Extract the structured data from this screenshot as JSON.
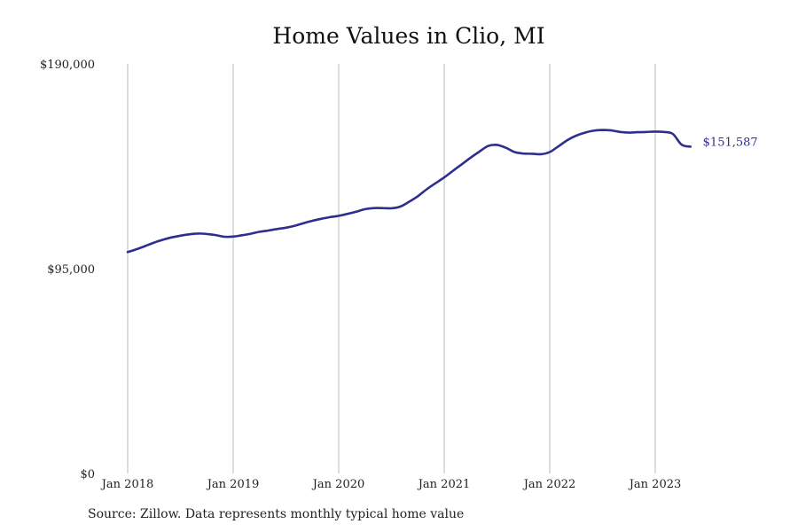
{
  "chart_data": {
    "type": "line",
    "title": "Home Values in Clio, MI",
    "xlabel": "",
    "ylabel": "",
    "ylim": [
      0,
      190000
    ],
    "y_ticks": [
      "$0",
      "$95,000",
      "$190,000"
    ],
    "y_tick_values": [
      0,
      95000,
      190000
    ],
    "x_tick_labels": [
      "Jan 2018",
      "Jan 2019",
      "Jan 2020",
      "Jan 2021",
      "Jan 2022",
      "Jan 2023"
    ],
    "x_tick_dates": [
      "2018-01",
      "2019-01",
      "2020-01",
      "2021-01",
      "2022-01",
      "2023-01"
    ],
    "grid": "vertical",
    "last_value_label": "$151,587",
    "line_color": "#2e2e8f",
    "grid_color": "#bbbbbb",
    "series": [
      {
        "x": [
          "2018-01",
          "2018-02",
          "2018-03",
          "2018-04",
          "2018-05",
          "2018-06",
          "2018-07",
          "2018-08",
          "2018-09",
          "2018-10",
          "2018-11",
          "2018-12",
          "2019-01",
          "2019-02",
          "2019-03",
          "2019-04",
          "2019-05",
          "2019-06",
          "2019-07",
          "2019-08",
          "2019-09",
          "2019-10",
          "2019-11",
          "2019-12",
          "2020-01",
          "2020-02",
          "2020-03",
          "2020-04",
          "2020-05",
          "2020-06",
          "2020-07",
          "2020-08",
          "2020-09",
          "2020-10",
          "2020-11",
          "2020-12",
          "2021-01",
          "2021-02",
          "2021-03",
          "2021-04",
          "2021-05",
          "2021-06",
          "2021-07",
          "2021-08",
          "2021-09",
          "2021-10",
          "2021-11",
          "2021-12",
          "2022-01",
          "2022-02",
          "2022-03",
          "2022-04",
          "2022-05",
          "2022-06",
          "2022-07",
          "2022-08",
          "2022-09",
          "2022-10",
          "2022-11",
          "2022-12",
          "2023-01",
          "2023-02",
          "2023-03",
          "2023-04",
          "2023-05"
        ],
        "values": [
          102700,
          104000,
          105500,
          107100,
          108400,
          109500,
          110300,
          110900,
          111300,
          111100,
          110600,
          109800,
          109900,
          110500,
          111200,
          112100,
          112700,
          113400,
          114000,
          114900,
          116100,
          117200,
          118100,
          118900,
          119500,
          120400,
          121400,
          122600,
          123100,
          123100,
          123000,
          123800,
          126000,
          128600,
          131800,
          134600,
          137300,
          140400,
          143400,
          146500,
          149300,
          151900,
          152400,
          151100,
          149100,
          148400,
          148300,
          148100,
          149100,
          151800,
          154600,
          156700,
          158100,
          159000,
          159300,
          159100,
          158400,
          158100,
          158300,
          158400,
          158600,
          158400,
          157500,
          152500,
          151587
        ]
      }
    ]
  },
  "source_note": "Source: Zillow. Data represents monthly typical home value"
}
